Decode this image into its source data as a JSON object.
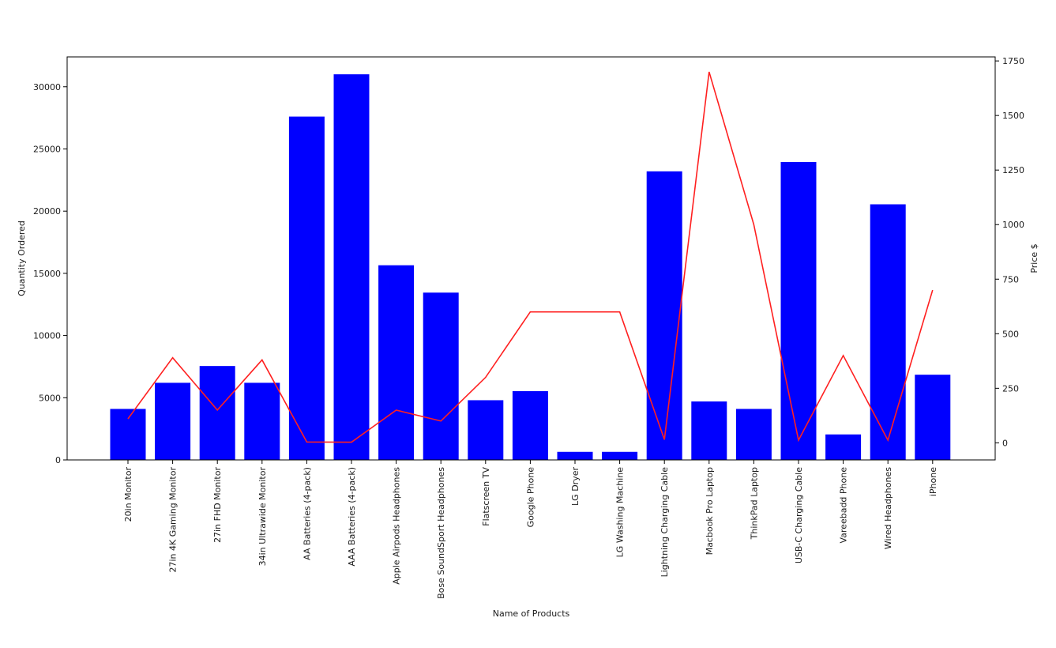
{
  "chart_data": {
    "type": "bar",
    "title": "",
    "xlabel": "Name of Products",
    "ylabel": "Quantity Ordered",
    "y2label": "Price $",
    "categories": [
      "20in Monitor",
      "27in 4K Gaming Monitor",
      "27in FHD Monitor",
      "34in Ultrawide Monitor",
      "AA Batteries (4-pack)",
      "AAA Batteries (4-pack)",
      "Apple Airpods Headphones",
      "Bose SoundSport Headphones",
      "Flatscreen TV",
      "Google Phone",
      "LG Dryer",
      "LG Washing Machine",
      "Lightning Charging Cable",
      "Macbook Pro Laptop",
      "ThinkPad Laptop",
      "USB-C Charging Cable",
      "Vareebadd Phone",
      "Wired Headphones",
      "iPhone"
    ],
    "series": [
      {
        "type": "bar",
        "axis": "left",
        "color": "#0000ff",
        "values": [
          4100,
          6200,
          7550,
          6200,
          27600,
          31000,
          15650,
          13450,
          4800,
          5530,
          650,
          650,
          23200,
          4700,
          4100,
          23950,
          2050,
          20550,
          6850
        ]
      },
      {
        "type": "line",
        "axis": "right",
        "color": "#ff2020",
        "values": [
          110,
          390,
          150,
          380,
          4,
          3,
          150,
          100,
          300,
          600,
          600,
          600,
          15,
          1700,
          1000,
          12,
          400,
          12,
          700
        ]
      }
    ],
    "ylim": [
      0,
      32400
    ],
    "y_ticks": [
      0,
      5000,
      10000,
      15000,
      20000,
      25000,
      30000
    ],
    "y2lim": [
      -78.3,
      1768.5
    ],
    "y2_ticks": [
      0,
      250,
      500,
      750,
      1000,
      1250,
      1500,
      1750
    ],
    "grid": false,
    "legend": "none"
  }
}
